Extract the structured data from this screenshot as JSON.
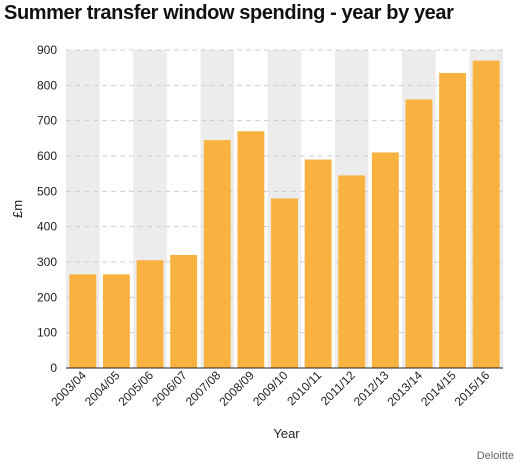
{
  "chart_data": {
    "type": "bar",
    "title": "Summer transfer window spending - year by year",
    "xlabel": "Year",
    "ylabel": "£m",
    "ylim": [
      0,
      900
    ],
    "yticks": [
      0,
      100,
      200,
      300,
      400,
      500,
      600,
      700,
      800,
      900
    ],
    "grid": true,
    "categories": [
      "2003/04",
      "2004/05",
      "2005/06",
      "2006/07",
      "2007/08",
      "2008/09",
      "2009/10",
      "2010/11",
      "2011/12",
      "2012/13",
      "2013/14",
      "2014/15",
      "2015/16"
    ],
    "values": [
      265,
      265,
      305,
      320,
      645,
      670,
      480,
      590,
      545,
      610,
      760,
      835,
      870
    ],
    "bar_color": "#f9b23f",
    "band_color": "#ececec",
    "source": "Deloitte"
  }
}
